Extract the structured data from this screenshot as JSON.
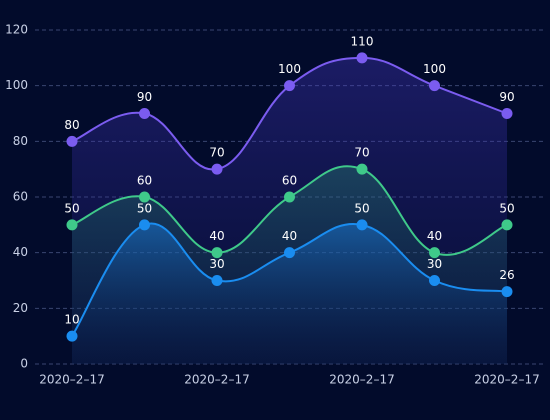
{
  "chart_data": {
    "type": "line",
    "categories": [
      "2020–2–17",
      null,
      "2020–2–17",
      null,
      "2020–2–17",
      null,
      "2020–2–17"
    ],
    "series": [
      {
        "name": "purple",
        "color": "#7b5cf0",
        "values": [
          80,
          90,
          70,
          100,
          110,
          100,
          90
        ]
      },
      {
        "name": "green",
        "color": "#3fc98a",
        "values": [
          50,
          60,
          40,
          60,
          70,
          40,
          50
        ]
      },
      {
        "name": "blue",
        "color": "#1a8df0",
        "values": [
          10,
          50,
          30,
          40,
          50,
          30,
          26
        ]
      }
    ],
    "ylim": [
      0,
      120
    ],
    "yticks": [
      0,
      20,
      40,
      60,
      80,
      100,
      120
    ],
    "grid": true
  }
}
